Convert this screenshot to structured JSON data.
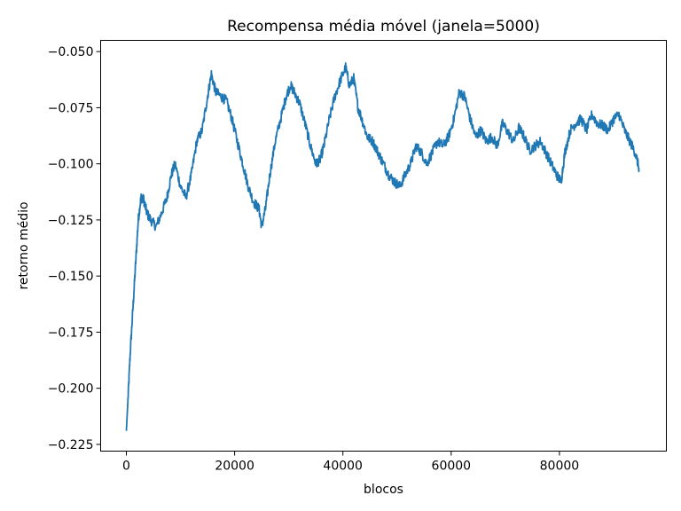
{
  "chart_data": {
    "type": "line",
    "title": "Recompensa média móvel (janela=5000)",
    "xlabel": "blocos",
    "ylabel": "retorno médio",
    "xlim": [
      -4750,
      99750
    ],
    "ylim": [
      -0.228,
      -0.045
    ],
    "xticks": [
      0,
      20000,
      40000,
      60000,
      80000
    ],
    "yticks": [
      -0.225,
      -0.2,
      -0.175,
      -0.15,
      -0.125,
      -0.1,
      -0.075,
      -0.05
    ],
    "ytick_labels": [
      "−0.225",
      "−0.200",
      "−0.175",
      "−0.150",
      "−0.125",
      "−0.100",
      "−0.075",
      "−0.050"
    ],
    "grid": false,
    "color": "#1f77b4",
    "series": [
      {
        "x": [
          0,
          300,
          700,
          1200,
          1700,
          2200,
          2700,
          3200,
          3800,
          4500,
          5500,
          6500,
          7500,
          8300,
          9000,
          10000,
          11000,
          12000,
          13000,
          14000,
          15000,
          15700,
          16500,
          17500,
          18500,
          19500,
          20500,
          21500,
          22500,
          23500,
          24500,
          25000,
          25700,
          26500,
          27500,
          28500,
          29500,
          30300,
          31000,
          32000,
          33000,
          34000,
          35000,
          35800,
          36500,
          37500,
          38500,
          39500,
          40500,
          41200,
          42000,
          42800,
          43500,
          44500,
          45500,
          46500,
          47500,
          48500,
          49500,
          50500,
          51500,
          52500,
          53500,
          54500,
          55500,
          56500,
          57500,
          58500,
          59500,
          60500,
          61500,
          62500,
          63500,
          64500,
          65500,
          66500,
          67500,
          68500,
          69500,
          70500,
          71500,
          72500,
          73500,
          74500,
          75500,
          76500,
          77500,
          78500,
          79500,
          80300,
          81000,
          82000,
          83000,
          84000,
          85000,
          86000,
          87000,
          88000,
          89000,
          90000,
          91000,
          92000,
          93000,
          94000,
          94700
        ],
        "y": [
          -0.219,
          -0.205,
          -0.185,
          -0.165,
          -0.145,
          -0.125,
          -0.115,
          -0.116,
          -0.122,
          -0.125,
          -0.128,
          -0.122,
          -0.115,
          -0.105,
          -0.1,
          -0.11,
          -0.115,
          -0.105,
          -0.09,
          -0.085,
          -0.07,
          -0.06,
          -0.068,
          -0.07,
          -0.072,
          -0.08,
          -0.09,
          -0.1,
          -0.11,
          -0.117,
          -0.12,
          -0.128,
          -0.12,
          -0.105,
          -0.09,
          -0.08,
          -0.07,
          -0.065,
          -0.068,
          -0.073,
          -0.082,
          -0.092,
          -0.1,
          -0.098,
          -0.092,
          -0.08,
          -0.07,
          -0.063,
          -0.057,
          -0.065,
          -0.062,
          -0.075,
          -0.08,
          -0.088,
          -0.09,
          -0.095,
          -0.1,
          -0.105,
          -0.108,
          -0.11,
          -0.105,
          -0.1,
          -0.092,
          -0.095,
          -0.1,
          -0.095,
          -0.09,
          -0.092,
          -0.088,
          -0.08,
          -0.068,
          -0.07,
          -0.08,
          -0.088,
          -0.085,
          -0.09,
          -0.088,
          -0.092,
          -0.082,
          -0.086,
          -0.09,
          -0.084,
          -0.088,
          -0.094,
          -0.092,
          -0.09,
          -0.095,
          -0.1,
          -0.105,
          -0.108,
          -0.095,
          -0.085,
          -0.082,
          -0.08,
          -0.085,
          -0.078,
          -0.082,
          -0.083,
          -0.085,
          -0.08,
          -0.078,
          -0.085,
          -0.09,
          -0.095,
          -0.102
        ]
      }
    ]
  }
}
